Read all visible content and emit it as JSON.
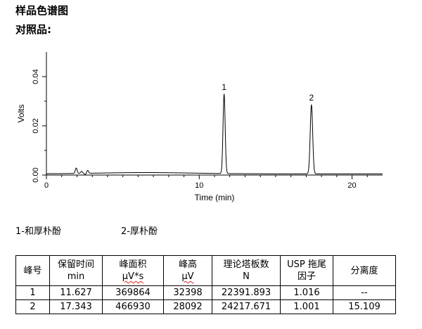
{
  "header": {
    "title": "样品色谱图",
    "subtitle": "对照品:"
  },
  "chart_data": {
    "type": "line",
    "xlabel": "Time (min)",
    "ylabel": "Volts",
    "xlim": [
      0,
      22
    ],
    "ylim": [
      0,
      0.05
    ],
    "x_ticks": [
      0,
      10,
      20
    ],
    "y_ticks": [
      0.0,
      0.02,
      0.04
    ],
    "x_tick_labels": [
      "0",
      "10",
      "20"
    ],
    "y_tick_labels": [
      "0.00",
      "0.02",
      "0.04"
    ],
    "grid": false,
    "series": [
      {
        "baseline": 0.0005,
        "peaks": [
          {
            "label": "1",
            "retention_time": 11.627,
            "height": 0.0322,
            "width": 0.14
          },
          {
            "label": "2",
            "retention_time": 17.343,
            "height": 0.028,
            "width": 0.16
          }
        ],
        "noise": [
          {
            "time": 1.95,
            "value": 0.0022
          },
          {
            "time": 2.3,
            "value": 0.0008
          },
          {
            "time": 2.55,
            "value": -0.0005
          },
          {
            "time": 2.7,
            "value": 0.0012
          }
        ]
      }
    ]
  },
  "legend": {
    "compound_1": "1-和厚朴酚",
    "compound_2": "2-厚朴酚"
  },
  "table": {
    "headers": [
      {
        "line1": "峰号",
        "line2": ""
      },
      {
        "line1": "保留时间",
        "line2": "min"
      },
      {
        "line1": "峰面积",
        "line2": "μV*s"
      },
      {
        "line1": "峰高",
        "line2": "μV"
      },
      {
        "line1": "理论塔板数",
        "line2": "N"
      },
      {
        "line1": "USP 拖尾",
        "line2": "因子"
      },
      {
        "line1": "分离度",
        "line2": ""
      }
    ],
    "rows": [
      [
        "1",
        "11.627",
        "369864",
        "32398",
        "22391.893",
        "1.016",
        "--"
      ],
      [
        "2",
        "17.343",
        "466930",
        "28092",
        "24217.671",
        "1.001",
        "15.109"
      ]
    ]
  }
}
